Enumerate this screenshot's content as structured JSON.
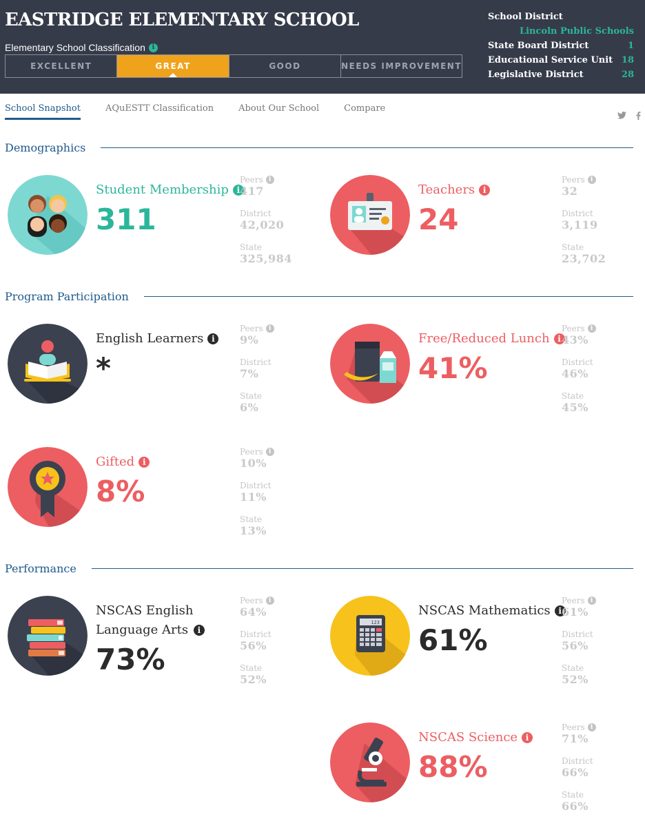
{
  "school": {
    "name": "EASTRIDGE ELEMENTARY SCHOOL",
    "classification_label": "Elementary School Classification",
    "classifications": [
      "EXCELLENT",
      "GREAT",
      "GOOD",
      "NEEDS IMPROVEMENT"
    ],
    "active_classification": "GREAT"
  },
  "district_info": {
    "school_district_label": "School District",
    "school_district_value": "Lincoln Public Schools",
    "state_board_label": "State Board District",
    "state_board_value": "1",
    "esu_label": "Educational Service Unit",
    "esu_value": "18",
    "legislative_label": "Legislative District",
    "legislative_value": "28"
  },
  "tabs": [
    "School Snapshot",
    "AQuESTT Classification",
    "About Our School",
    "Compare"
  ],
  "active_tab": "School Snapshot",
  "social": {
    "twitter": "twitter-icon",
    "facebook": "facebook-icon"
  },
  "info_glyph": "i",
  "compare_labels": {
    "peers": "Peers",
    "district": "District",
    "state": "State"
  },
  "sections": {
    "demographics": "Demographics",
    "program": "Program Participation",
    "performance": "Performance"
  },
  "metrics": {
    "student_membership": {
      "label": "Student Membership",
      "value": "311",
      "peers": "417",
      "district": "42,020",
      "state": "325,984",
      "icon": "students-icon"
    },
    "teachers": {
      "label": "Teachers",
      "value": "24",
      "peers": "32",
      "district": "3,119",
      "state": "23,702",
      "icon": "id-badge-icon"
    },
    "english_learners": {
      "label": "English Learners",
      "value": "*",
      "peers": "9%",
      "district": "7%",
      "state": "6%",
      "icon": "reader-book-icon"
    },
    "free_lunch": {
      "label": "Free/Reduced Lunch",
      "value": "41%",
      "peers": "43%",
      "district": "46%",
      "state": "45%",
      "icon": "lunch-icon"
    },
    "gifted": {
      "label": "Gifted",
      "value": "8%",
      "peers": "10%",
      "district": "11%",
      "state": "13%",
      "icon": "award-ribbon-icon"
    },
    "ela": {
      "label_line1": "NSCAS English",
      "label_line2": "Language Arts",
      "value": "73%",
      "peers": "64%",
      "district": "56%",
      "state": "52%",
      "icon": "books-icon"
    },
    "math": {
      "label": "NSCAS Mathematics",
      "value": "61%",
      "peers": "61%",
      "district": "56%",
      "state": "52%",
      "icon": "calculator-icon",
      "calc_display": "123"
    },
    "science": {
      "label": "NSCAS Science",
      "value": "88%",
      "peers": "71%",
      "district": "66%",
      "state": "66%",
      "icon": "microscope-icon"
    }
  },
  "colors": {
    "header_bg": "#363b4a",
    "accent_orange": "#efa31d",
    "teal": "#2bb69a",
    "coral": "#ec5e62",
    "navy": "#1f5a8c",
    "yellow": "#f6c21b"
  }
}
